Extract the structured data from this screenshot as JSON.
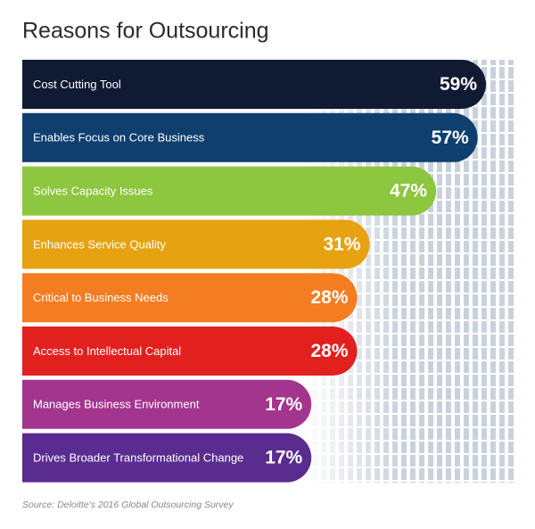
{
  "chart_data": {
    "type": "bar",
    "orientation": "horizontal",
    "title": "Reasons for Outsourcing",
    "categories": [
      "Cost Cutting Tool",
      "Enables Focus on Core Business",
      "Solves Capacity Issues",
      "Enhances Service Quality",
      "Critical to Business Needs",
      "Access to Intellectual Capital",
      "Manages Business Environment",
      "Drives Broader Transformational Change"
    ],
    "values": [
      59,
      57,
      47,
      31,
      28,
      28,
      17,
      17
    ],
    "value_labels": [
      "59%",
      "57%",
      "47%",
      "31%",
      "28%",
      "28%",
      "17%",
      "17%"
    ],
    "colors": [
      "#111a33",
      "#0f3f6e",
      "#8dc63f",
      "#e7a212",
      "#f47d21",
      "#e2211f",
      "#a4358e",
      "#5b2c8f"
    ],
    "source": "Source: Deloitte's 2016 Global Outsourcing Survey"
  }
}
